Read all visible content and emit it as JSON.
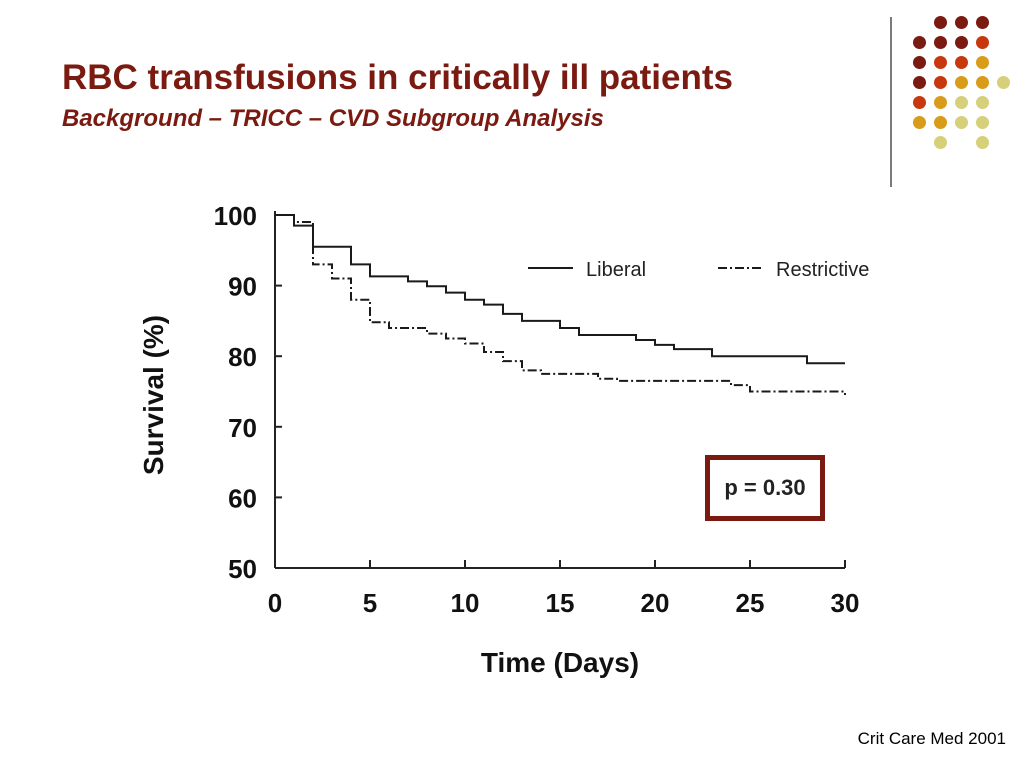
{
  "slide": {
    "title": "RBC transfusions in critically ill patients",
    "subtitle": "Background – TRICC – CVD Subgroup Analysis",
    "citation": "Crit Care Med 2001",
    "accent_color": "#7a1a10",
    "decor_dot_colors": [
      "#7a1a10",
      "#c8380f",
      "#d99b1a",
      "#d6d07a"
    ]
  },
  "chart_data": {
    "type": "line",
    "title": "",
    "xlabel": "Time (Days)",
    "ylabel": "Survival (%)",
    "xlim": [
      0,
      30
    ],
    "ylim": [
      50,
      100
    ],
    "xticks": [
      "0",
      "5",
      "10",
      "15",
      "20",
      "25",
      "30"
    ],
    "yticks": [
      "100",
      "90",
      "80",
      "70",
      "60",
      "50"
    ],
    "grid": false,
    "legend_position": "top-right",
    "annotation": "p = 0.30",
    "series": [
      {
        "name": "Liberal",
        "style": "solid",
        "x": [
          0,
          1,
          2,
          4,
          5,
          7,
          8,
          9,
          10,
          11,
          12,
          13,
          14,
          15,
          16,
          18,
          19,
          20,
          21,
          23,
          26,
          28,
          30
        ],
        "y": [
          100,
          98.5,
          95.5,
          93,
          91.3,
          90.6,
          89.9,
          89,
          88,
          87.3,
          86,
          85,
          85,
          84,
          83,
          83,
          82.3,
          81.6,
          81,
          80,
          80,
          79,
          79
        ]
      },
      {
        "name": "Restrictive",
        "style": "dash-dot",
        "x": [
          0,
          1,
          2,
          3,
          4,
          5,
          6,
          8,
          9,
          10,
          11,
          12,
          13,
          14,
          16,
          17,
          18,
          22,
          23,
          24,
          25,
          30
        ],
        "y": [
          100,
          99,
          93,
          91,
          88,
          84.8,
          84,
          83.2,
          82.5,
          81.8,
          80.6,
          79.3,
          78,
          77.5,
          77.5,
          76.8,
          76.5,
          76.5,
          76.5,
          75.9,
          75,
          74.5
        ]
      }
    ]
  }
}
